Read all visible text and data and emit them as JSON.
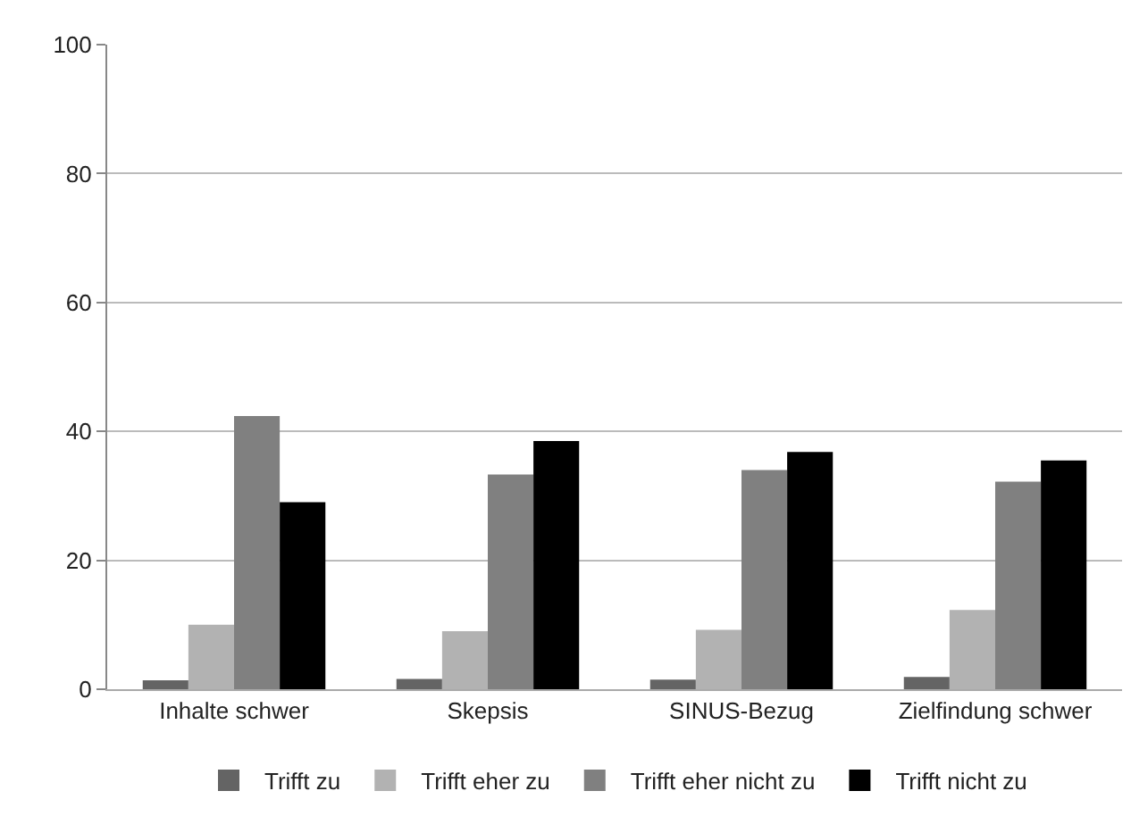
{
  "chart_data": {
    "type": "bar",
    "categories": [
      "Inhalte schwer",
      "Skepsis",
      "SINUS-Bezug",
      "Zielfindung schwer"
    ],
    "series": [
      {
        "name": "Trifft zu",
        "color": "#646464",
        "values": [
          1.4,
          1.6,
          1.5,
          1.9
        ]
      },
      {
        "name": "Trifft eher zu",
        "color": "#b2b2b2",
        "values": [
          10,
          9,
          9.2,
          12.3
        ]
      },
      {
        "name": "Trifft eher nicht zu",
        "color": "#808080",
        "values": [
          42.4,
          33.3,
          34,
          32.2
        ]
      },
      {
        "name": "Trifft nicht zu",
        "color": "#000000",
        "values": [
          29,
          38.5,
          36.8,
          35.5
        ]
      }
    ],
    "ylim": [
      0,
      100
    ],
    "yticks": [
      0,
      20,
      40,
      60,
      80,
      100
    ],
    "grid": "y",
    "legend": "bottom"
  }
}
